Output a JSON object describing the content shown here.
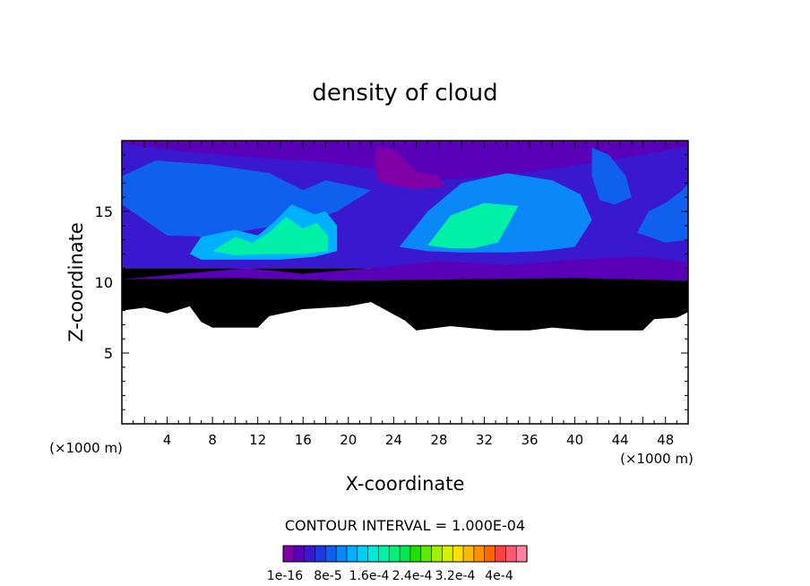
{
  "chart_data": {
    "type": "heatmap",
    "title": "density of cloud",
    "xlabel": "X-coordinate",
    "ylabel": "Z-coordinate",
    "x_unit": "(×1000 m)",
    "y_unit": "(×1000 m)",
    "xlim": [
      0,
      50
    ],
    "ylim": [
      0,
      20
    ],
    "x_ticks": [
      {
        "value": 4,
        "label": "4"
      },
      {
        "value": 8,
        "label": "8"
      },
      {
        "value": 12,
        "label": "12"
      },
      {
        "value": 16,
        "label": "16"
      },
      {
        "value": 20,
        "label": "20"
      },
      {
        "value": 24,
        "label": "24"
      },
      {
        "value": 28,
        "label": "28"
      },
      {
        "value": 32,
        "label": "32"
      },
      {
        "value": 36,
        "label": "36"
      },
      {
        "value": 40,
        "label": "40"
      },
      {
        "value": 44,
        "label": "44"
      },
      {
        "value": 48,
        "label": "48"
      }
    ],
    "y_ticks": [
      {
        "value": 5,
        "label": "5"
      },
      {
        "value": 10,
        "label": "10"
      },
      {
        "value": 15,
        "label": "15"
      }
    ],
    "contour_interval_text": "CONTOUR INTERVAL = 1.000E-04",
    "colorbar": {
      "colors": [
        "#8000a8",
        "#5a00b8",
        "#3a18d0",
        "#2038e0",
        "#1060f0",
        "#0a88f8",
        "#00b0ff",
        "#00d0f0",
        "#00e8d8",
        "#00f0a8",
        "#00f078",
        "#00e850",
        "#20e000",
        "#60e800",
        "#a0f000",
        "#d8f000",
        "#ffe000",
        "#ffb800",
        "#ff9000",
        "#ff6800",
        "#ff4040",
        "#ff5870",
        "#ff80a0"
      ],
      "tick_labels": [
        "1e-16",
        "8e-5",
        "1.6e-4",
        "2.4e-4",
        "3.2e-4",
        "4e-4"
      ]
    },
    "regions": [
      {
        "name": "purple cloud base band",
        "level": 0.5,
        "polygon": [
          [
            0,
            8
          ],
          [
            2,
            8.2
          ],
          [
            4,
            7.8
          ],
          [
            6,
            8.3
          ],
          [
            7,
            7.2
          ],
          [
            8,
            6.8
          ],
          [
            12,
            6.8
          ],
          [
            13,
            7.6
          ],
          [
            16,
            8.1
          ],
          [
            20,
            8.3
          ],
          [
            22,
            8.6
          ],
          [
            25,
            7.3
          ],
          [
            26,
            6.6
          ],
          [
            29,
            6.9
          ],
          [
            33,
            6.6
          ],
          [
            36,
            6.6
          ],
          [
            38,
            6.8
          ],
          [
            41,
            6.6
          ],
          [
            46,
            6.6
          ],
          [
            47,
            7.4
          ],
          [
            49,
            7.5
          ],
          [
            50,
            7.9
          ],
          [
            50,
            11
          ],
          [
            0,
            11
          ]
        ]
      },
      {
        "name": "blue cloud body",
        "level": 2,
        "polygon": [
          [
            0,
            11
          ],
          [
            50,
            11
          ],
          [
            50,
            20
          ],
          [
            0,
            20
          ]
        ]
      },
      {
        "name": "deep blue tongue",
        "level": 1,
        "polygon": [
          [
            11,
            11
          ],
          [
            16,
            10.6
          ],
          [
            22,
            11
          ],
          [
            28,
            11.5
          ],
          [
            34,
            11.2
          ],
          [
            40,
            11.6
          ],
          [
            46,
            11.8
          ],
          [
            50,
            11.4
          ],
          [
            50,
            10.1
          ],
          [
            40,
            10.3
          ],
          [
            30,
            10.2
          ],
          [
            20,
            10.1
          ],
          [
            10,
            10.3
          ],
          [
            0,
            10.2
          ]
        ]
      },
      {
        "name": "dark band left top",
        "level": 1,
        "polygon": [
          [
            0,
            19.8
          ],
          [
            6,
            19.2
          ],
          [
            12,
            18.8
          ],
          [
            18,
            18.5
          ],
          [
            24,
            17.8
          ],
          [
            28,
            17.2
          ],
          [
            34,
            17.6
          ],
          [
            38,
            18
          ],
          [
            42,
            18.5
          ],
          [
            46,
            19
          ],
          [
            50,
            19.6
          ],
          [
            50,
            20
          ],
          [
            0,
            20
          ]
        ]
      },
      {
        "name": "dark purple spot",
        "level": 0,
        "polygon": [
          [
            22.5,
            19.6
          ],
          [
            24.2,
            19.3
          ],
          [
            26,
            17.8
          ],
          [
            28,
            17.5
          ],
          [
            28.5,
            16.7
          ],
          [
            26,
            16.6
          ],
          [
            24,
            16.8
          ],
          [
            22.6,
            17.2
          ],
          [
            22.3,
            18.5
          ]
        ]
      },
      {
        "name": "left anvil cyan",
        "level": 4,
        "polygon": [
          [
            0,
            17.5
          ],
          [
            3,
            18.6
          ],
          [
            8,
            18.3
          ],
          [
            13,
            17.7
          ],
          [
            16,
            16.5
          ],
          [
            18,
            17.2
          ],
          [
            22,
            16.5
          ],
          [
            19,
            15
          ],
          [
            16,
            14.2
          ],
          [
            12,
            13.8
          ],
          [
            8,
            13.2
          ],
          [
            4,
            13.3
          ],
          [
            2,
            14.4
          ],
          [
            0,
            15.5
          ]
        ]
      },
      {
        "name": "right dome cyan",
        "level": 5,
        "polygon": [
          [
            24.5,
            12.5
          ],
          [
            27,
            15
          ],
          [
            30,
            17
          ],
          [
            34,
            17.7
          ],
          [
            38,
            17.2
          ],
          [
            40.5,
            16.2
          ],
          [
            41.5,
            14.4
          ],
          [
            40,
            12.5
          ],
          [
            37,
            12.2
          ],
          [
            34,
            12.1
          ],
          [
            30,
            12.1
          ],
          [
            27,
            12.2
          ]
        ]
      },
      {
        "name": "right dome green core",
        "level": 9,
        "polygon": [
          [
            27,
            12.6
          ],
          [
            29,
            14.7
          ],
          [
            32,
            15.6
          ],
          [
            35,
            15.4
          ],
          [
            34.2,
            14.2
          ],
          [
            33.2,
            12.8
          ],
          [
            31,
            12.4
          ],
          [
            29,
            12.4
          ]
        ]
      },
      {
        "name": "left cells cyan",
        "level": 6,
        "polygon": [
          [
            6,
            12
          ],
          [
            7,
            13.2
          ],
          [
            10,
            13.7
          ],
          [
            12,
            13.3
          ],
          [
            13.5,
            14.3
          ],
          [
            15,
            15.5
          ],
          [
            17,
            14.8
          ],
          [
            18,
            15
          ],
          [
            19,
            14
          ],
          [
            19,
            12.2
          ],
          [
            17,
            11.8
          ],
          [
            14,
            11.6
          ],
          [
            10,
            11.6
          ],
          [
            7,
            11.6
          ]
        ]
      },
      {
        "name": "left cells green",
        "level": 9,
        "polygon": [
          [
            8,
            12.2
          ],
          [
            10,
            13.2
          ],
          [
            11.5,
            12.8
          ],
          [
            13,
            13.5
          ],
          [
            14.5,
            14.6
          ],
          [
            16,
            13.8
          ],
          [
            17.2,
            14.2
          ],
          [
            18.2,
            13.3
          ],
          [
            18.2,
            12.2
          ],
          [
            16,
            12
          ],
          [
            13,
            12
          ],
          [
            10,
            11.9
          ]
        ]
      },
      {
        "name": "right tower cyan",
        "level": 4,
        "polygon": [
          [
            41.5,
            19.5
          ],
          [
            43,
            19
          ],
          [
            44.5,
            17.5
          ],
          [
            45,
            16
          ],
          [
            43.5,
            15.5
          ],
          [
            42.2,
            15.8
          ],
          [
            41.5,
            17.5
          ]
        ]
      },
      {
        "name": "far right plume cyan",
        "level": 4,
        "polygon": [
          [
            45.5,
            13.5
          ],
          [
            46.5,
            15
          ],
          [
            48,
            15.6
          ],
          [
            49.5,
            16.5
          ],
          [
            50,
            17
          ],
          [
            50,
            13
          ],
          [
            48,
            12.8
          ]
        ]
      }
    ]
  }
}
